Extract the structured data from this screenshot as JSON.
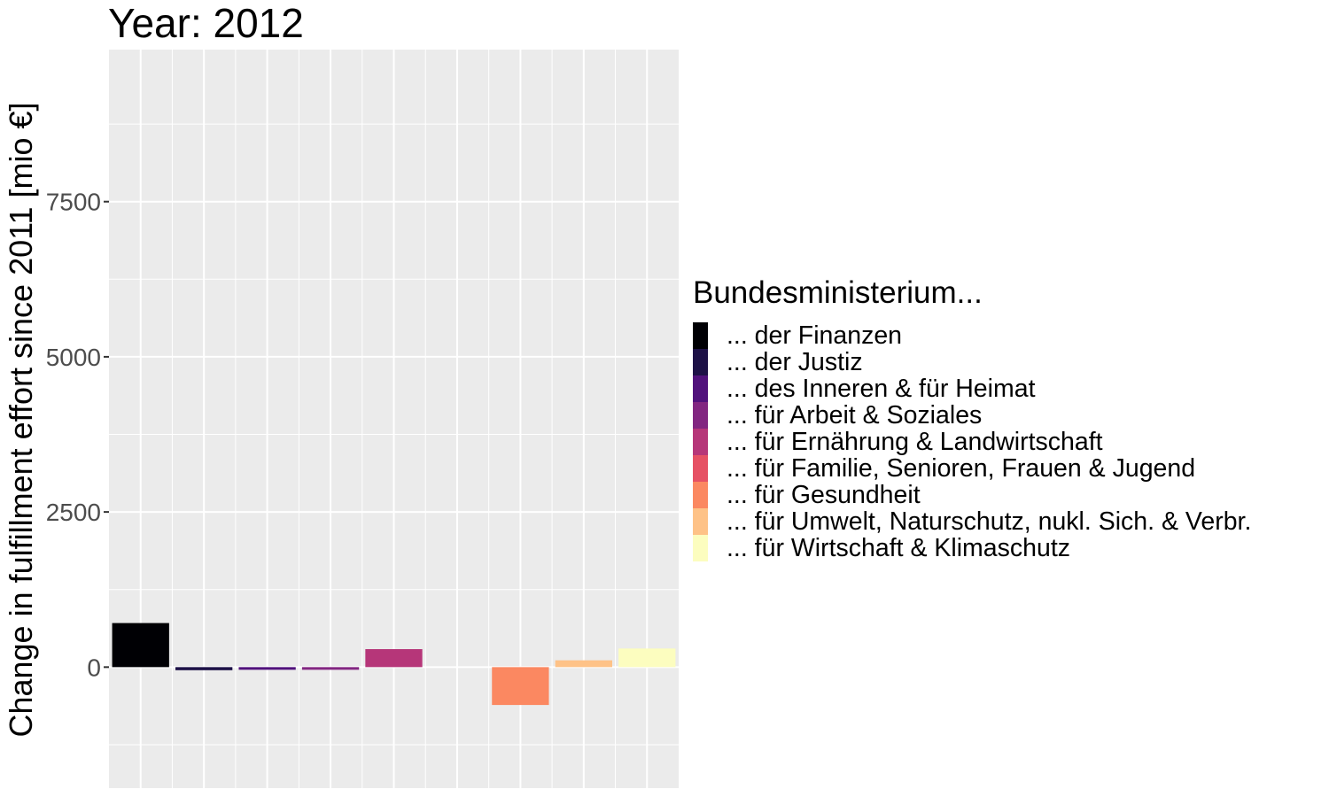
{
  "chart_data": {
    "type": "bar",
    "title": "Year: 2012",
    "xlabel": "",
    "ylabel": "Change in fulfillment effort since 2011 [mio €]",
    "yticks": [
      0,
      2500,
      5000,
      7500
    ],
    "ylim": [
      -1950,
      9950
    ],
    "grid": true,
    "legend_position": "right",
    "legend_title": "Bundesministerium...",
    "categories": [
      "... der Finanzen",
      "... der Justiz",
      "... des Inneren & für Heimat",
      "... für Arbeit & Soziales",
      "... für Ernährung & Landwirtschaft",
      "... für Familie, Senioren, Frauen & Jugend",
      "... für Gesundheit",
      "... für Umwelt, Naturschutz, nukl. Sich. & Verbr.",
      "... für Wirtschaft & Klimaschutz"
    ],
    "values": [
      710,
      -50,
      -30,
      -30,
      290,
      0,
      -610,
      110,
      300
    ],
    "colors": [
      "#000004",
      "#1D1147",
      "#51127C",
      "#822681",
      "#B63679",
      "#E65164",
      "#FB8861",
      "#FEC287",
      "#FCFDBF"
    ]
  }
}
